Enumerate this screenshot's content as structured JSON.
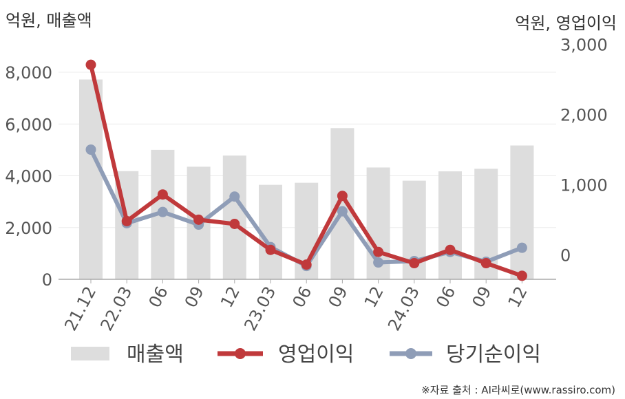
{
  "chart_data": {
    "type": "bar+line",
    "y_left_unit": "억원, 매출액",
    "y_right_unit": "억원, 영업이익",
    "categories": [
      "21.12",
      "22.03",
      "06",
      "09",
      "12",
      "23.03",
      "06",
      "09",
      "12",
      "24.03",
      "06",
      "09",
      "12"
    ],
    "y_left_ticks": [
      "0",
      "2,000",
      "4,000",
      "6,000",
      "8,000"
    ],
    "y_right_ticks": [
      "0",
      "1,000",
      "2,000",
      "3,000"
    ],
    "ylim_left": [
      0,
      8000
    ],
    "ylim_right": [
      -350,
      2800
    ],
    "series": [
      {
        "name": "매출액",
        "type": "bar",
        "axis": "left",
        "color": "#dddddd",
        "values": [
          7720,
          4180,
          5000,
          4350,
          4780,
          3650,
          3730,
          5840,
          4320,
          3810,
          4170,
          4270,
          5170
        ]
      },
      {
        "name": "영업이익",
        "type": "line",
        "axis": "right",
        "color": "#c0393b",
        "values": [
          2710,
          480,
          860,
          500,
          440,
          70,
          -140,
          840,
          40,
          -120,
          70,
          -120,
          -300
        ]
      },
      {
        "name": "당기순이익",
        "type": "line",
        "axis": "right",
        "color": "#8f9db7",
        "values": [
          1500,
          450,
          610,
          430,
          830,
          110,
          -160,
          620,
          -110,
          -90,
          40,
          -100,
          100
        ]
      }
    ],
    "legend_position": "bottom",
    "grid": true
  },
  "source_text": "※자료 출처 : AI라씨로(www.rassiro.com)"
}
